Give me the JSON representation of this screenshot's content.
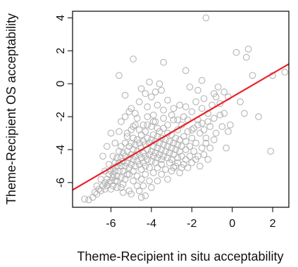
{
  "chart_data": {
    "type": "scatter",
    "title": "",
    "xlabel": "Theme-Recipient in situ acceptability",
    "ylabel": "Theme-Recipient OS acceptability",
    "xlim": [
      -7.9,
      2.8
    ],
    "ylim": [
      -7.5,
      4.4
    ],
    "xticks": [
      -6,
      -4,
      -2,
      0,
      2
    ],
    "yticks": [
      -6,
      -4,
      -2,
      0,
      2,
      4
    ],
    "grid": false,
    "colors": {
      "points": "#b4b4b4",
      "fit_line": "#e8232a",
      "axes": "#000000"
    },
    "regression_line": {
      "x": [
        -7.9,
        2.8
      ],
      "y": [
        -6.45,
        1.2
      ]
    },
    "series": [
      {
        "points": [
          [
            -7.3,
            -7.0
          ],
          [
            -7.1,
            -7.05
          ],
          [
            -6.9,
            -6.9
          ],
          [
            -6.8,
            -6.6
          ],
          [
            -6.7,
            -6.7
          ],
          [
            -6.6,
            -6.4
          ],
          [
            -6.5,
            -6.5
          ],
          [
            -6.4,
            -6.2
          ],
          [
            -6.3,
            -6.4
          ],
          [
            -6.3,
            -6.0
          ],
          [
            -6.2,
            -6.2
          ],
          [
            -6.2,
            -5.8
          ],
          [
            -6.1,
            -6.0
          ],
          [
            -6.1,
            -5.5
          ],
          [
            -6.0,
            -5.9
          ],
          [
            -6.0,
            -5.3
          ],
          [
            -6.0,
            -6.4
          ],
          [
            -5.9,
            -5.7
          ],
          [
            -5.9,
            -5.1
          ],
          [
            -5.9,
            -4.4
          ],
          [
            -5.8,
            -5.9
          ],
          [
            -5.8,
            -5.3
          ],
          [
            -5.8,
            -4.8
          ],
          [
            -5.7,
            -5.6
          ],
          [
            -5.7,
            -5.0
          ],
          [
            -5.7,
            -4.5
          ],
          [
            -5.7,
            -6.3
          ],
          [
            -5.6,
            -5.3
          ],
          [
            -5.6,
            -4.8
          ],
          [
            -5.6,
            -4.1
          ],
          [
            -5.5,
            -5.7
          ],
          [
            -5.5,
            -5.0
          ],
          [
            -5.5,
            -4.5
          ],
          [
            -5.5,
            -3.8
          ],
          [
            -5.4,
            -5.3
          ],
          [
            -5.4,
            -4.7
          ],
          [
            -5.4,
            -4.2
          ],
          [
            -5.4,
            -6.1
          ],
          [
            -5.3,
            -5.0
          ],
          [
            -5.3,
            -4.4
          ],
          [
            -5.3,
            -3.6
          ],
          [
            -5.2,
            -5.5
          ],
          [
            -5.2,
            -4.8
          ],
          [
            -5.2,
            -4.1
          ],
          [
            -5.2,
            -3.2
          ],
          [
            -5.1,
            -5.1
          ],
          [
            -5.1,
            -4.5
          ],
          [
            -5.1,
            -3.8
          ],
          [
            -5.1,
            -6.5
          ],
          [
            -5.0,
            -4.9
          ],
          [
            -5.0,
            -4.3
          ],
          [
            -5.0,
            -3.6
          ],
          [
            -5.0,
            -2.8
          ],
          [
            -4.9,
            -5.3
          ],
          [
            -4.9,
            -4.6
          ],
          [
            -4.9,
            -4.0
          ],
          [
            -4.9,
            -3.3
          ],
          [
            -4.8,
            -5.0
          ],
          [
            -4.8,
            -4.4
          ],
          [
            -4.8,
            -3.7
          ],
          [
            -4.8,
            -2.5
          ],
          [
            -4.7,
            -5.6
          ],
          [
            -4.7,
            -4.7
          ],
          [
            -4.7,
            -4.1
          ],
          [
            -4.7,
            -3.4
          ],
          [
            -4.6,
            -4.9
          ],
          [
            -4.6,
            -4.3
          ],
          [
            -4.6,
            -3.6
          ],
          [
            -4.6,
            -2.8
          ],
          [
            -4.5,
            -5.2
          ],
          [
            -4.5,
            -4.5
          ],
          [
            -4.5,
            -3.9
          ],
          [
            -4.5,
            -3.1
          ],
          [
            -4.4,
            -4.8
          ],
          [
            -4.4,
            -4.2
          ],
          [
            -4.4,
            -3.5
          ],
          [
            -4.4,
            -6.2
          ],
          [
            -4.3,
            -5.0
          ],
          [
            -4.3,
            -4.4
          ],
          [
            -4.3,
            -3.7
          ],
          [
            -4.3,
            -2.9
          ],
          [
            -4.2,
            -4.6
          ],
          [
            -4.2,
            -4.0
          ],
          [
            -4.2,
            -3.3
          ],
          [
            -4.2,
            -2.5
          ],
          [
            -4.1,
            -5.1
          ],
          [
            -4.1,
            -4.3
          ],
          [
            -4.1,
            -3.6
          ],
          [
            -4.0,
            -4.7
          ],
          [
            -4.0,
            -4.1
          ],
          [
            -4.0,
            -3.4
          ],
          [
            -4.0,
            -2.6
          ],
          [
            -3.9,
            -4.4
          ],
          [
            -3.9,
            -3.8
          ],
          [
            -3.9,
            -3.1
          ],
          [
            -3.8,
            -4.8
          ],
          [
            -3.8,
            -4.2
          ],
          [
            -3.8,
            -3.5
          ],
          [
            -3.8,
            -2.3
          ],
          [
            -3.7,
            -4.5
          ],
          [
            -3.7,
            -3.9
          ],
          [
            -3.7,
            -3.2
          ],
          [
            -3.6,
            -4.3
          ],
          [
            -3.6,
            -3.6
          ],
          [
            -3.6,
            -2.9
          ],
          [
            -3.5,
            -4.6
          ],
          [
            -3.5,
            -4.0
          ],
          [
            -3.5,
            -3.3
          ],
          [
            -3.4,
            -4.4
          ],
          [
            -3.4,
            -3.7
          ],
          [
            -3.4,
            -2.7
          ],
          [
            -3.3,
            -4.1
          ],
          [
            -3.3,
            -3.4
          ],
          [
            -3.2,
            -4.5
          ],
          [
            -3.2,
            -3.8
          ],
          [
            -3.2,
            -3.0
          ],
          [
            -3.1,
            -4.2
          ],
          [
            -3.1,
            -3.5
          ],
          [
            -3.0,
            -4.6
          ],
          [
            -3.0,
            -3.9
          ],
          [
            -3.0,
            -3.1
          ],
          [
            -2.9,
            -4.3
          ],
          [
            -2.9,
            -3.6
          ],
          [
            -2.8,
            -4.0
          ],
          [
            -2.8,
            -3.3
          ],
          [
            -2.7,
            -4.5
          ],
          [
            -2.7,
            -3.7
          ],
          [
            -2.6,
            -4.1
          ],
          [
            -2.6,
            -3.4
          ],
          [
            -2.5,
            -4.4
          ],
          [
            -2.5,
            -3.8
          ],
          [
            -2.4,
            -3.2
          ],
          [
            -2.3,
            -4.0
          ],
          [
            -2.3,
            -3.5
          ],
          [
            -2.2,
            -2.9
          ],
          [
            -2.1,
            -3.8
          ],
          [
            -2.0,
            -3.3
          ],
          [
            -1.9,
            -2.7
          ],
          [
            -1.8,
            -3.6
          ],
          [
            -1.6,
            -3.0
          ],
          [
            -1.5,
            -2.4
          ],
          [
            -1.3,
            -3.3
          ],
          [
            -1.1,
            -2.6
          ],
          [
            -0.9,
            -2.1
          ],
          [
            -0.6,
            -1.2
          ],
          [
            -0.4,
            -1.8
          ],
          [
            -0.1,
            -2.5
          ],
          [
            -6.4,
            -4.4
          ],
          [
            -6.2,
            -3.8
          ],
          [
            -6.0,
            -3.0
          ],
          [
            -5.8,
            -3.6
          ],
          [
            -5.6,
            -2.9
          ],
          [
            -5.5,
            -2.3
          ],
          [
            -5.3,
            -2.0
          ],
          [
            -5.1,
            -1.7
          ],
          [
            -5.0,
            -1.5
          ],
          [
            -4.8,
            -1.8
          ],
          [
            -4.6,
            -1.1
          ],
          [
            -4.5,
            -0.3
          ],
          [
            -4.3,
            -0.6
          ],
          [
            -4.2,
            -1.4
          ],
          [
            -4.0,
            -0.8
          ],
          [
            -3.9,
            -1.9
          ],
          [
            -3.7,
            -1.3
          ],
          [
            -3.5,
            -0.4
          ],
          [
            -3.4,
            -1.6
          ],
          [
            -3.2,
            -1.0
          ],
          [
            -3.0,
            -1.9
          ],
          [
            -2.9,
            -1.5
          ],
          [
            -2.7,
            -2.2
          ],
          [
            -2.6,
            -1.3
          ],
          [
            -2.4,
            -2.0
          ],
          [
            -2.3,
            -1.4
          ],
          [
            -2.1,
            -0.2
          ],
          [
            -2.0,
            -1.7
          ],
          [
            -1.8,
            -1.1
          ],
          [
            -1.7,
            -2.2
          ],
          [
            -1.5,
            -1.5
          ],
          [
            -1.4,
            -0.9
          ],
          [
            -1.2,
            -1.8
          ],
          [
            -1.0,
            -1.3
          ],
          [
            -0.8,
            -0.8
          ],
          [
            -0.6,
            -1.9
          ],
          [
            -5.6,
            0.5
          ],
          [
            -5.3,
            -0.7
          ],
          [
            -4.9,
            1.5
          ],
          [
            -4.1,
            0.1
          ],
          [
            -3.8,
            -0.5
          ],
          [
            -3.6,
            0.0
          ],
          [
            -3.4,
            1.3
          ],
          [
            -2.3,
            0.8
          ],
          [
            -1.7,
            -0.4
          ],
          [
            -1.5,
            0.2
          ],
          [
            -1.3,
            4.0
          ],
          [
            -0.9,
            -0.6
          ],
          [
            -0.7,
            -0.2
          ],
          [
            -0.4,
            -0.5
          ],
          [
            -0.2,
            -0.8
          ],
          [
            0.2,
            1.9
          ],
          [
            0.4,
            -1.1
          ],
          [
            0.6,
            -1.8
          ],
          [
            0.7,
            1.6
          ],
          [
            0.8,
            2.1
          ],
          [
            1.0,
            0.5
          ],
          [
            1.3,
            -2.0
          ],
          [
            1.9,
            -4.1
          ],
          [
            2.0,
            0.5
          ],
          [
            2.6,
            0.7
          ],
          [
            -0.3,
            -3.9
          ],
          [
            -5.9,
            -6.2
          ],
          [
            -5.4,
            -6.6
          ],
          [
            -5.0,
            -6.7
          ],
          [
            -4.6,
            -6.5
          ],
          [
            -4.5,
            -6.9
          ],
          [
            -4.3,
            -6.8
          ],
          [
            -4.0,
            -6.3
          ],
          [
            -3.7,
            -5.9
          ],
          [
            -3.5,
            -5.5
          ],
          [
            -3.2,
            -5.8
          ],
          [
            -3.0,
            -5.3
          ],
          [
            -2.8,
            -5.0
          ],
          [
            -2.6,
            -5.4
          ],
          [
            -2.4,
            -4.9
          ],
          [
            -2.2,
            -5.1
          ],
          [
            -2.0,
            -4.8
          ],
          [
            -1.8,
            -4.6
          ],
          [
            -1.6,
            -5.0
          ],
          [
            -1.4,
            -4.3
          ],
          [
            -1.2,
            -4.6
          ],
          [
            -6.7,
            -6.2
          ],
          [
            -6.5,
            -5.8
          ],
          [
            -6.3,
            -5.3
          ],
          [
            -6.1,
            -4.9
          ],
          [
            -5.9,
            -5.5
          ],
          [
            -5.7,
            -5.9
          ],
          [
            -5.5,
            -6.3
          ],
          [
            -5.3,
            -5.8
          ],
          [
            -5.1,
            -5.5
          ],
          [
            -4.9,
            -5.9
          ],
          [
            -4.7,
            -6.2
          ],
          [
            -4.5,
            -5.8
          ],
          [
            -4.3,
            -5.5
          ],
          [
            -4.1,
            -5.9
          ],
          [
            -3.9,
            -5.4
          ],
          [
            -3.7,
            -5.1
          ],
          [
            -3.5,
            -4.9
          ],
          [
            -3.3,
            -5.2
          ],
          [
            -3.1,
            -4.8
          ],
          [
            -2.9,
            -5.1
          ],
          [
            -2.7,
            -4.8
          ],
          [
            -2.5,
            -5.1
          ],
          [
            -2.3,
            -4.6
          ],
          [
            -2.1,
            -4.4
          ],
          [
            -1.9,
            -4.1
          ],
          [
            -1.7,
            -4.4
          ],
          [
            -1.5,
            -3.9
          ],
          [
            -1.3,
            -3.6
          ],
          [
            -1.1,
            -3.9
          ],
          [
            -0.9,
            -3.4
          ],
          [
            -5.2,
            -3.0
          ],
          [
            -4.9,
            -2.6
          ],
          [
            -4.7,
            -2.1
          ],
          [
            -4.4,
            -2.5
          ],
          [
            -4.2,
            -2.0
          ],
          [
            -3.9,
            -2.3
          ],
          [
            -3.7,
            -2.7
          ],
          [
            -3.4,
            -2.1
          ],
          [
            -3.2,
            -2.5
          ],
          [
            -2.9,
            -2.2
          ],
          [
            -2.7,
            -2.8
          ],
          [
            -2.5,
            -2.5
          ],
          [
            -2.2,
            -2.2
          ],
          [
            -2.0,
            -2.8
          ],
          [
            -1.7,
            -2.5
          ],
          [
            -1.4,
            -2.8
          ],
          [
            -1.2,
            -2.3
          ],
          [
            -0.8,
            -3.0
          ],
          [
            -0.5,
            -2.6
          ],
          [
            -0.2,
            -2.9
          ]
        ]
      }
    ]
  }
}
